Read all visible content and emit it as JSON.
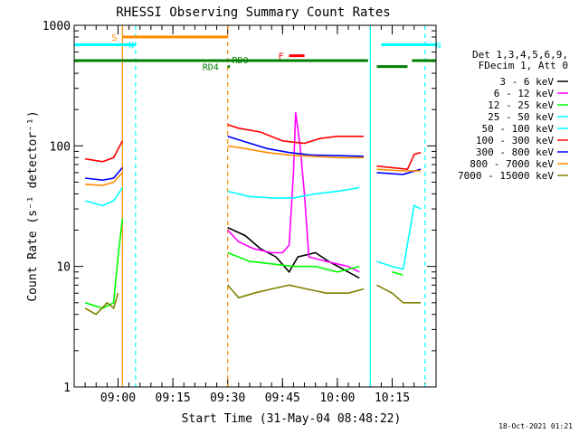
{
  "chart_data": {
    "type": "line",
    "title": "RHESSI Observing Summary Count Rates",
    "xlabel": "Start Time (31-May-04 08:48:22)",
    "ylabel": "Count Rate (s⁻¹ detector⁻¹)",
    "yscale": "log",
    "ylim": [
      1,
      1000
    ],
    "xlim": [
      8.8,
      10.45
    ],
    "x_ticks": [
      9.0,
      9.25,
      9.5,
      9.75,
      10.0,
      10.25
    ],
    "x_tick_labels": [
      "09:00",
      "09:15",
      "09:30",
      "09:45",
      "10:00",
      "10:15"
    ],
    "y_ticks": [
      1,
      10,
      100,
      1000
    ],
    "y_tick_labels": [
      "1",
      "10",
      "100",
      "1000"
    ],
    "legend_header": [
      "Det 1,3,4,5,6,9,",
      "FDecim 1, Att 0"
    ],
    "legend_placement": "right",
    "date_stamp": "18-Oct-2021 01:21",
    "series": [
      {
        "name": "3 - 6 keV",
        "color": "#000000",
        "segments": [
          [
            [
              9.5,
              21
            ],
            [
              9.58,
              18
            ],
            [
              9.65,
              14
            ],
            [
              9.72,
              12
            ],
            [
              9.78,
              9
            ],
            [
              9.82,
              12
            ],
            [
              9.9,
              13
            ],
            [
              9.96,
              11
            ],
            [
              10.05,
              9
            ],
            [
              10.1,
              8
            ]
          ]
        ]
      },
      {
        "name": "6 - 12 keV",
        "color": "#ff00ff",
        "segments": [
          [
            [
              9.5,
              20
            ],
            [
              9.55,
              16
            ],
            [
              9.62,
              14
            ],
            [
              9.7,
              13
            ],
            [
              9.75,
              13
            ],
            [
              9.78,
              15
            ],
            [
              9.8,
              60
            ],
            [
              9.81,
              190
            ],
            [
              9.83,
              100
            ],
            [
              9.85,
              40
            ],
            [
              9.87,
              12
            ],
            [
              9.95,
              11
            ],
            [
              10.05,
              10
            ],
            [
              10.1,
              9
            ]
          ]
        ]
      },
      {
        "name": "12 - 25 keV",
        "color": "#00ff00",
        "segments": [
          [
            [
              8.85,
              5
            ],
            [
              8.93,
              4.5
            ],
            [
              8.98,
              5
            ],
            [
              9.0,
              12
            ],
            [
              9.02,
              25
            ]
          ],
          [
            [
              9.5,
              13
            ],
            [
              9.6,
              11
            ],
            [
              9.7,
              10.5
            ],
            [
              9.8,
              10
            ],
            [
              9.9,
              10
            ],
            [
              10.0,
              9
            ],
            [
              10.1,
              10
            ]
          ],
          [
            [
              10.25,
              9
            ],
            [
              10.3,
              8.5
            ]
          ]
        ]
      },
      {
        "name": "25 - 50 keV",
        "color": "#00ffff",
        "segments": [
          [
            [
              8.85,
              35
            ],
            [
              8.93,
              32
            ],
            [
              8.98,
              35
            ],
            [
              9.02,
              45
            ]
          ],
          [
            [
              9.5,
              42
            ],
            [
              9.6,
              38
            ],
            [
              9.7,
              37
            ],
            [
              9.8,
              37
            ],
            [
              9.9,
              40
            ],
            [
              10.0,
              42
            ],
            [
              10.1,
              45
            ]
          ],
          [
            [
              10.18,
              11
            ],
            [
              10.25,
              10
            ],
            [
              10.3,
              9.5
            ],
            [
              10.35,
              32
            ],
            [
              10.38,
              30
            ]
          ]
        ]
      },
      {
        "name": "50 - 100 keV",
        "color": "#00ffff",
        "segments": []
      },
      {
        "name": "100 - 300 keV",
        "color": "#ff0000",
        "segments": [
          [
            [
              8.85,
              78
            ],
            [
              8.93,
              74
            ],
            [
              8.98,
              80
            ],
            [
              9.02,
              110
            ]
          ],
          [
            [
              9.5,
              150
            ],
            [
              9.55,
              140
            ],
            [
              9.65,
              130
            ],
            [
              9.75,
              110
            ],
            [
              9.85,
              105
            ],
            [
              9.92,
              115
            ],
            [
              10.0,
              120
            ],
            [
              10.12,
              120
            ]
          ],
          [
            [
              10.18,
              68
            ],
            [
              10.25,
              66
            ],
            [
              10.32,
              64
            ],
            [
              10.35,
              85
            ],
            [
              10.38,
              88
            ]
          ]
        ]
      },
      {
        "name": "300 - 800 keV",
        "color": "#0000ff",
        "segments": [
          [
            [
              8.85,
              54
            ],
            [
              8.93,
              52
            ],
            [
              8.98,
              54
            ],
            [
              9.02,
              66
            ]
          ],
          [
            [
              9.5,
              120
            ],
            [
              9.58,
              108
            ],
            [
              9.68,
              95
            ],
            [
              9.78,
              88
            ],
            [
              9.88,
              84
            ],
            [
              10.0,
              83
            ],
            [
              10.12,
              82
            ]
          ],
          [
            [
              10.18,
              60
            ],
            [
              10.3,
              58
            ],
            [
              10.38,
              64
            ]
          ]
        ]
      },
      {
        "name": "800 - 7000 keV",
        "color": "#ff8c00",
        "segments": [
          [
            [
              8.85,
              48
            ],
            [
              8.93,
              47
            ],
            [
              8.98,
              50
            ],
            [
              9.02,
              60
            ]
          ],
          [
            [
              9.5,
              100
            ],
            [
              9.58,
              95
            ],
            [
              9.68,
              88
            ],
            [
              9.78,
              84
            ],
            [
              9.88,
              82
            ],
            [
              10.0,
              80
            ],
            [
              10.12,
              80
            ]
          ],
          [
            [
              10.18,
              64
            ],
            [
              10.3,
              62
            ],
            [
              10.38,
              62
            ]
          ]
        ]
      },
      {
        "name": "7000 - 15000 keV",
        "color": "#808000",
        "segments": [
          [
            [
              8.85,
              4.5
            ],
            [
              8.9,
              4
            ],
            [
              8.95,
              5
            ],
            [
              8.98,
              4.5
            ],
            [
              9.0,
              6
            ]
          ],
          [
            [
              9.5,
              7
            ],
            [
              9.55,
              5.5
            ],
            [
              9.62,
              6
            ],
            [
              9.7,
              6.5
            ],
            [
              9.78,
              7
            ],
            [
              9.86,
              6.5
            ],
            [
              9.95,
              6
            ],
            [
              10.05,
              6
            ],
            [
              10.12,
              6.5
            ]
          ],
          [
            [
              10.18,
              7
            ],
            [
              10.25,
              6
            ],
            [
              10.3,
              5
            ],
            [
              10.38,
              5
            ]
          ]
        ]
      }
    ],
    "mode_bars": [
      {
        "label": "S",
        "color": "#ff8c00",
        "x": [
          9.02,
          9.5
        ],
        "level": 800
      },
      {
        "label": "N",
        "color": "#00ffff",
        "x": [
          8.8,
          9.08
        ],
        "level": 690
      },
      {
        "label": "N",
        "color": "#00ffff",
        "x": [
          10.2,
          10.45
        ],
        "level": 690
      },
      {
        "label": "F",
        "color": "#ff0000",
        "x": [
          9.78,
          9.85
        ],
        "level": 560
      },
      {
        "label": "RD0",
        "color": "#008000",
        "x": [
          8.8,
          10.14
        ],
        "level": 510
      },
      {
        "label": "RD4",
        "color": "#008000",
        "x": [
          9.5,
          9.51
        ],
        "level": 455
      },
      {
        "label": "",
        "color": "#008000",
        "x": [
          10.18,
          10.32
        ],
        "level": 455
      },
      {
        "label": "",
        "color": "#008000",
        "x": [
          10.34,
          10.45
        ],
        "level": 510
      }
    ],
    "vlines": [
      {
        "x": 9.02,
        "color": "#ff8c00",
        "style": "solid"
      },
      {
        "x": 9.08,
        "color": "#00ffff",
        "style": "dashed"
      },
      {
        "x": 9.5,
        "color": "#ff8c00",
        "style": "dashed"
      },
      {
        "x": 10.15,
        "color": "#00ffff",
        "style": "solid"
      },
      {
        "x": 10.4,
        "color": "#00ffff",
        "style": "dashed"
      }
    ]
  }
}
